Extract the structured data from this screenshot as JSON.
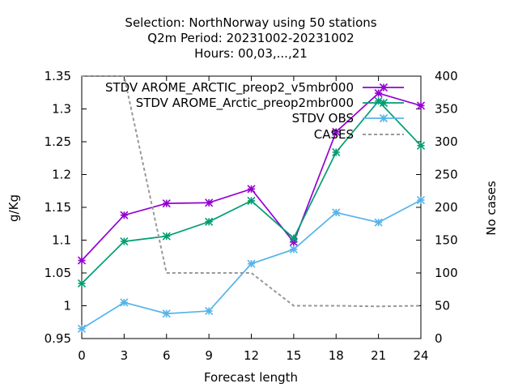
{
  "chart_data": {
    "type": "line",
    "title_lines": [
      "Selection: NorthNorway using    50 stations",
      "Q2m   Period: 20231002-20231002",
      "Hours:  00,03,...,21"
    ],
    "xlabel": "Forecast length",
    "ylabel": "g/Kg",
    "y2label": "No cases",
    "x": [
      0,
      3,
      6,
      9,
      12,
      15,
      18,
      21,
      24
    ],
    "xlim": [
      0,
      24
    ],
    "ylim": [
      0.95,
      1.35
    ],
    "y2lim": [
      0,
      400
    ],
    "x_ticks": [
      "0",
      "3",
      "6",
      "9",
      "12",
      "15",
      "18",
      "21",
      "24"
    ],
    "y_ticks": [
      "0.95",
      "1",
      "1.05",
      "1.1",
      "1.15",
      "1.2",
      "1.25",
      "1.3",
      "1.35"
    ],
    "y2_ticks": [
      "0",
      "50",
      "100",
      "150",
      "200",
      "250",
      "300",
      "350",
      "400"
    ],
    "grid": false,
    "legend_placement": "top-right",
    "series": [
      {
        "name": "STDV AROME_ARCTIC_preop2_v5mbr000",
        "color": "#9400d3",
        "axis": "left",
        "values": [
          1.069,
          1.138,
          1.156,
          1.157,
          1.178,
          1.097,
          1.265,
          1.324,
          1.305
        ]
      },
      {
        "name": "STDV AROME_Arctic_preop2mbr000",
        "color": "#009e73",
        "axis": "left",
        "values": [
          1.034,
          1.098,
          1.106,
          1.128,
          1.16,
          1.103,
          1.234,
          1.312,
          1.244
        ]
      },
      {
        "name": "STDV OBS",
        "color": "#56b4e9",
        "axis": "left",
        "values": [
          0.965,
          1.005,
          0.988,
          0.992,
          1.064,
          1.086,
          1.142,
          1.127,
          1.161
        ]
      },
      {
        "name": "CASES",
        "color": "#999999",
        "axis": "right",
        "dashed": true,
        "values": [
          400,
          400,
          100,
          100,
          100,
          50,
          50,
          49,
          50
        ]
      }
    ]
  }
}
